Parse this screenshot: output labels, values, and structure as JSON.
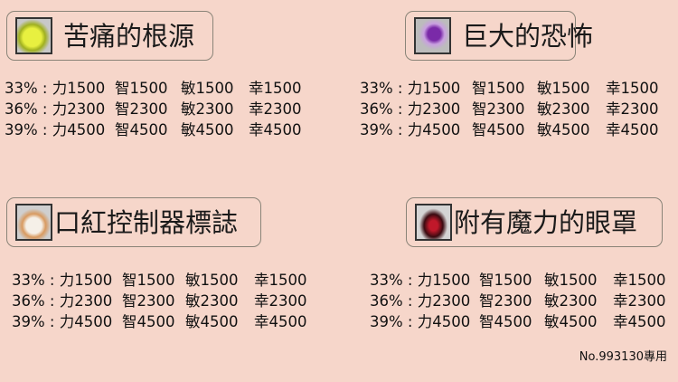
{
  "items": [
    {
      "name": "苦痛的根源",
      "icon": "yellow-skull-pendant-icon",
      "rows": [
        [
          "33% : 力1500",
          "智1500",
          "敏1500",
          "幸1500"
        ],
        [
          "36% : 力2300",
          "智2300",
          "敏2300",
          "幸2300"
        ],
        [
          "39% : 力4500",
          "智4500",
          "敏4500",
          "幸4500"
        ]
      ]
    },
    {
      "name": "巨大的恐怖",
      "icon": "purple-eye-pendant-icon",
      "rows": [
        [
          "33% : 力1500",
          "智1500",
          "敏1500",
          "幸1500"
        ],
        [
          "36% : 力2300",
          "智2300",
          "敏2300",
          "幸2300"
        ],
        [
          "39% : 力4500",
          "智4500",
          "敏4500",
          "幸4500"
        ]
      ]
    },
    {
      "name": "口紅控制器標誌",
      "icon": "lipstick-badge-icon",
      "rows": [
        [
          "33% : 力1500",
          "智1500",
          "敏1500",
          "幸1500"
        ],
        [
          "36% : 力2300",
          "智2300",
          "敏2300",
          "幸2300"
        ],
        [
          "39% : 力4500",
          "智4500",
          "敏4500",
          "幸4500"
        ]
      ]
    },
    {
      "name": "附有魔力的眼罩",
      "icon": "magic-eyepatch-icon",
      "rows": [
        [
          "33% : 力1500",
          "智1500",
          "敏1500",
          "幸1500"
        ],
        [
          "36% : 力2300",
          "智2300",
          "敏2300",
          "幸2300"
        ],
        [
          "39% : 力4500",
          "智4500",
          "敏4500",
          "幸4500"
        ]
      ]
    }
  ],
  "footer_note": "No.993130專用",
  "colors": {
    "background": "#f6d6ca",
    "border": "#8a8478"
  }
}
